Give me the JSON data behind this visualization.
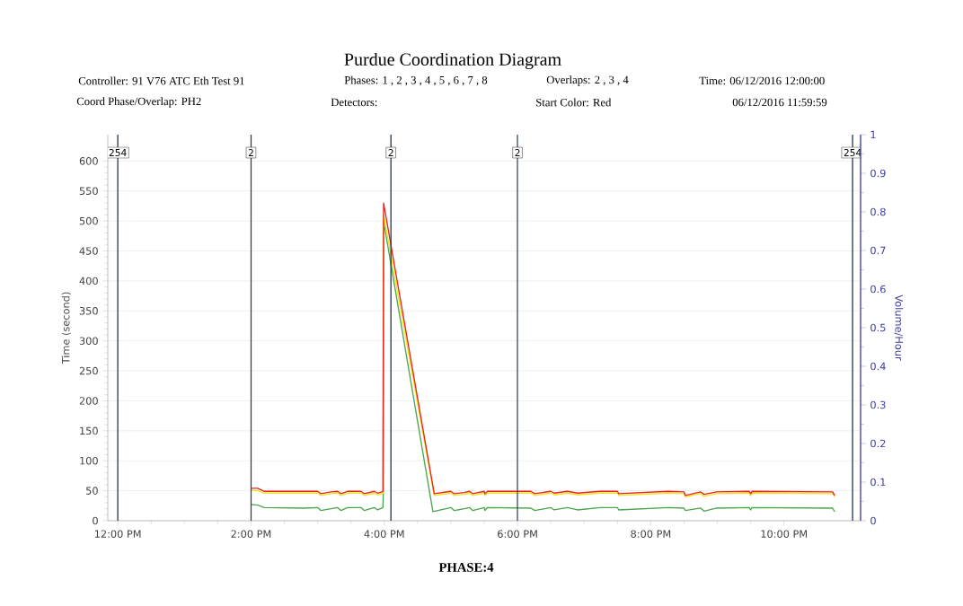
{
  "chart_data": {
    "type": "line",
    "title": "Purdue Coordination Diagram",
    "annotations": [
      "Controller: 91 V76 ATC Eth Test 91",
      "Phases: 1 , 2 , 3 , 4 , 5 , 6 , 7 , 8",
      "Overlaps: 2 , 3 , 4",
      "Time: 06/12/2016 12:00:00",
      "Coord Phase/Overlap: PH2",
      "Detectors:",
      "Start Color: Red",
      "06/12/2016 11:59:59",
      {
        "text": "254",
        "x": 12.0,
        "y": 614
      },
      {
        "text": "2",
        "x": 14.0,
        "y": 614
      },
      {
        "text": "2",
        "x": 16.1,
        "y": 614
      },
      {
        "text": "2",
        "x": 18.0,
        "y": 614
      },
      {
        "text": "254",
        "x": 23.03,
        "y": 614
      }
    ],
    "xlabel": "PHASE:4",
    "ylabel": "Time (second)",
    "y2label": "Volume/Hour",
    "xlim": [
      11.85,
      23.15
    ],
    "xticks": [
      {
        "value": 12,
        "label": "12:00 PM"
      },
      {
        "value": 14,
        "label": "2:00 PM"
      },
      {
        "value": 16,
        "label": "4:00 PM"
      },
      {
        "value": 18,
        "label": "6:00 PM"
      },
      {
        "value": 20,
        "label": "8:00 PM"
      },
      {
        "value": 22,
        "label": "10:00 PM"
      }
    ],
    "ylim": [
      0,
      644
    ],
    "yticks": [
      0,
      50,
      100,
      150,
      200,
      250,
      300,
      350,
      400,
      450,
      500,
      550,
      600
    ],
    "y2lim": [
      0,
      1
    ],
    "y2ticks": [
      0,
      0.1,
      0.2,
      0.3,
      0.4,
      0.5,
      0.6,
      0.7,
      0.8,
      0.9,
      1
    ],
    "grid": "y",
    "series": [
      {
        "color": "#4ca64c",
        "x": [
          14.0,
          14.1,
          14.2,
          14.8,
          15.0,
          15.05,
          15.2,
          15.3,
          15.35,
          15.45,
          15.65,
          15.7,
          15.85,
          15.9,
          15.98,
          15.985,
          15.99,
          16.73,
          17.0,
          17.05,
          17.2,
          17.28,
          17.33,
          17.5,
          17.51,
          17.55,
          18.2,
          18.26,
          18.5,
          18.55,
          18.75,
          18.9,
          19.24,
          19.5,
          19.52,
          20.26,
          20.5,
          20.52,
          20.75,
          20.8,
          20.99,
          21.48,
          21.5,
          21.52,
          22.73,
          22.76
        ],
        "values": [
          27,
          26,
          22,
          21,
          22,
          17,
          20,
          22,
          17,
          22,
          22,
          17,
          22,
          18,
          22,
          45,
          500,
          15,
          22,
          17,
          20,
          22,
          17,
          22,
          17,
          22,
          21,
          17,
          22,
          18,
          22,
          18,
          22,
          22,
          18,
          22,
          21,
          17,
          21,
          16,
          21,
          22,
          18,
          22,
          21,
          15
        ]
      },
      {
        "color": "#f2e21c",
        "x": [
          14.0,
          14.1,
          14.2,
          14.8,
          15.0,
          15.05,
          15.2,
          15.3,
          15.35,
          15.45,
          15.65,
          15.7,
          15.85,
          15.9,
          15.98,
          15.99,
          16.75,
          17.0,
          17.05,
          17.2,
          17.28,
          17.33,
          17.5,
          17.51,
          17.55,
          18.2,
          18.26,
          18.5,
          18.55,
          18.75,
          18.9,
          19.24,
          19.5,
          19.52,
          20.26,
          20.5,
          20.52,
          20.75,
          20.8,
          20.99,
          21.48,
          21.5,
          21.52,
          22.73,
          22.76
        ],
        "values": [
          51,
          50,
          46,
          46,
          46,
          42,
          45,
          46,
          42,
          46,
          46,
          42,
          46,
          43,
          46,
          510,
          42,
          46,
          42,
          44,
          46,
          42,
          46,
          42,
          46,
          46,
          42,
          46,
          43,
          46,
          43,
          46,
          46,
          42,
          46,
          45,
          40,
          45,
          41,
          45,
          46,
          42,
          46,
          45,
          40
        ]
      },
      {
        "color": "#e8231c",
        "x": [
          14.0,
          14.1,
          14.2,
          14.8,
          15.0,
          15.05,
          15.2,
          15.3,
          15.35,
          15.45,
          15.65,
          15.7,
          15.85,
          15.9,
          15.98,
          15.99,
          16.75,
          17.0,
          17.05,
          17.2,
          17.28,
          17.33,
          17.5,
          17.51,
          17.55,
          18.2,
          18.26,
          18.5,
          18.55,
          18.75,
          18.9,
          19.24,
          19.5,
          19.52,
          20.26,
          20.5,
          20.52,
          20.75,
          20.8,
          20.99,
          21.48,
          21.5,
          21.52,
          22.73,
          22.76
        ],
        "values": [
          54,
          54,
          49,
          49,
          49,
          45,
          48,
          49,
          45,
          49,
          49,
          45,
          49,
          46,
          49,
          530,
          45,
          49,
          45,
          47,
          49,
          45,
          49,
          45,
          49,
          49,
          45,
          49,
          46,
          49,
          46,
          49,
          49,
          45,
          49,
          48,
          42,
          48,
          44,
          48,
          49,
          45,
          49,
          48,
          42
        ]
      }
    ],
    "ref_lines": [
      {
        "axis": "x",
        "value": 12.0,
        "color": "#2b3a55"
      },
      {
        "axis": "x",
        "value": 14.0,
        "color": "#2b3a55"
      },
      {
        "axis": "x",
        "value": 16.1,
        "color": "#2b3a55"
      },
      {
        "axis": "x",
        "value": 18.0,
        "color": "#2b3a55"
      },
      {
        "axis": "x",
        "value": 23.03,
        "color": "#2b3a55"
      }
    ]
  }
}
